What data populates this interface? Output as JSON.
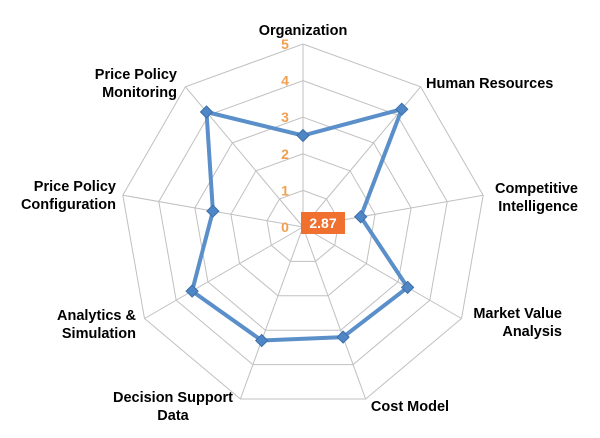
{
  "chart_data": {
    "type": "radar",
    "title": "",
    "axes": [
      "Organization",
      "Human Resources",
      "Competitive Intelligence",
      "Market Value Analysis",
      "Cost Model",
      "Decision Support Data",
      "Analytics & Simulation",
      "Price Policy Configuration",
      "Price Policy Monitoring"
    ],
    "axis_label_lines": [
      [
        "Organization"
      ],
      [
        "Human Resources"
      ],
      [
        "Competitive",
        "Intelligence"
      ],
      [
        "Market Value",
        "Analysis"
      ],
      [
        "Cost Model"
      ],
      [
        "Decision Support",
        "Data"
      ],
      [
        "Analytics &",
        "Simulation"
      ],
      [
        "Price Policy",
        "Configuration"
      ],
      [
        "Price Policy",
        "Monitoring"
      ]
    ],
    "series": [
      {
        "values": [
          2.5,
          4.2,
          1.6,
          3.3,
          3.2,
          3.3,
          3.5,
          2.5,
          4.1
        ]
      }
    ],
    "rmin": 0,
    "rmax": 5,
    "ticks": [
      "0",
      "1",
      "2",
      "3",
      "4",
      "5"
    ],
    "center_label": "2.87",
    "colors": {
      "series": "#5b8fc9",
      "marker": "#4f86c6",
      "grid": "#c0c0c0",
      "ticks": "#f0a050",
      "center_badge": "#f07030"
    },
    "grid": true,
    "legend": "none"
  }
}
